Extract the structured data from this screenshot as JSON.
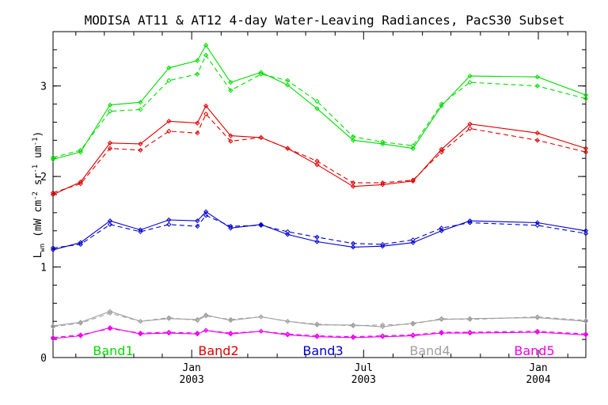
{
  "chart_data": {
    "type": "line",
    "title": "MODISA AT11 & AT12 4-day Water-Leaving Radiances, PacS30 Subset",
    "ylabel": "L_wn (mW cm^-2 sr^-1 um^-1)",
    "ylabel_main": "L",
    "ylabel_sub": "wn",
    "ylabel_open": " (mW cm",
    "ylabel_sup1": "-2",
    "ylabel_mid1": " sr",
    "ylabel_sup2": "-1",
    "ylabel_mid2": " um",
    "ylabel_sup3": "-1",
    "ylabel_close": ")",
    "xlabel": "",
    "ylim": [
      0,
      3.6
    ],
    "xlim": [
      "2002-08-08",
      "2004-02-20"
    ],
    "grid": false,
    "line_styles": {
      "AT11": "solid",
      "AT12": "dashed"
    },
    "yticks": [
      0,
      1,
      2,
      3
    ],
    "xticks": [
      {
        "date": "2003-01-01",
        "top": "Jan",
        "bottom": "2003"
      },
      {
        "date": "2003-07-01",
        "top": "Jul",
        "bottom": "2003"
      },
      {
        "date": "2004-01-01",
        "top": "Jan",
        "bottom": "2004"
      }
    ],
    "minor_xtick_dates": [
      "2002-09-01",
      "2002-10-01",
      "2002-11-01",
      "2002-12-01",
      "2003-02-01",
      "2003-03-01",
      "2003-04-01",
      "2003-05-01",
      "2003-06-01",
      "2003-08-01",
      "2003-09-01",
      "2003-10-01",
      "2003-11-01",
      "2003-12-01",
      "2004-02-01"
    ],
    "x": [
      "2002-08-08",
      "2002-09-06",
      "2002-10-07",
      "2002-11-08",
      "2002-12-08",
      "2003-01-07",
      "2003-01-16",
      "2003-02-11",
      "2003-03-15",
      "2003-04-12",
      "2003-05-13",
      "2003-06-20",
      "2003-07-21",
      "2003-08-22",
      "2003-09-21",
      "2003-10-21",
      "2003-12-31",
      "2004-02-20"
    ],
    "series": [
      {
        "name": "Band1 AT11",
        "color": "#00dd00",
        "style": "solid",
        "values": [
          2.19,
          2.27,
          2.79,
          2.82,
          3.2,
          3.28,
          3.45,
          3.04,
          3.15,
          3.01,
          2.75,
          2.4,
          2.36,
          2.31,
          2.78,
          3.11,
          3.1,
          2.9
        ]
      },
      {
        "name": "Band1 AT12",
        "color": "#00dd00",
        "style": "dashed",
        "values": [
          2.21,
          2.29,
          2.72,
          2.74,
          3.06,
          3.13,
          3.34,
          2.95,
          3.13,
          3.06,
          2.83,
          2.44,
          2.38,
          2.34,
          2.8,
          3.04,
          3.0,
          2.86
        ]
      },
      {
        "name": "Band2 AT11",
        "color": "#dd0000",
        "style": "solid",
        "values": [
          1.8,
          1.94,
          2.37,
          2.36,
          2.61,
          2.59,
          2.78,
          2.45,
          2.43,
          2.31,
          2.13,
          1.89,
          1.91,
          1.95,
          2.3,
          2.58,
          2.48,
          2.31
        ]
      },
      {
        "name": "Band2 AT12",
        "color": "#dd0000",
        "style": "dashed",
        "values": [
          1.82,
          1.92,
          2.31,
          2.29,
          2.5,
          2.48,
          2.69,
          2.39,
          2.43,
          2.31,
          2.17,
          1.93,
          1.93,
          1.96,
          2.27,
          2.53,
          2.4,
          2.27
        ]
      },
      {
        "name": "Band3 AT11",
        "color": "#0000cc",
        "style": "solid",
        "values": [
          1.19,
          1.27,
          1.51,
          1.41,
          1.52,
          1.51,
          1.61,
          1.43,
          1.47,
          1.36,
          1.28,
          1.22,
          1.23,
          1.27,
          1.4,
          1.51,
          1.49,
          1.4
        ]
      },
      {
        "name": "Band3 AT12",
        "color": "#0000cc",
        "style": "dashed",
        "values": [
          1.21,
          1.25,
          1.47,
          1.39,
          1.47,
          1.45,
          1.57,
          1.45,
          1.46,
          1.39,
          1.33,
          1.26,
          1.25,
          1.3,
          1.43,
          1.49,
          1.46,
          1.37
        ]
      },
      {
        "name": "Band4 AT11",
        "color": "#a0a0a0",
        "style": "solid",
        "values": [
          0.35,
          0.39,
          0.51,
          0.4,
          0.43,
          0.42,
          0.47,
          0.41,
          0.45,
          0.4,
          0.36,
          0.36,
          0.34,
          0.38,
          0.42,
          0.43,
          0.44,
          0.4
        ]
      },
      {
        "name": "Band4 AT12",
        "color": "#a0a0a0",
        "style": "dashed",
        "values": [
          0.34,
          0.38,
          0.49,
          0.4,
          0.44,
          0.41,
          0.46,
          0.42,
          0.45,
          0.4,
          0.37,
          0.35,
          0.36,
          0.37,
          0.43,
          0.42,
          0.45,
          0.41
        ]
      },
      {
        "name": "Band5 AT11",
        "color": "#ee00ee",
        "style": "solid",
        "values": [
          0.21,
          0.24,
          0.33,
          0.26,
          0.27,
          0.26,
          0.3,
          0.26,
          0.29,
          0.25,
          0.23,
          0.22,
          0.23,
          0.24,
          0.27,
          0.27,
          0.28,
          0.25
        ]
      },
      {
        "name": "Band5 AT12",
        "color": "#ee00ee",
        "style": "dashed",
        "values": [
          0.22,
          0.25,
          0.32,
          0.27,
          0.28,
          0.27,
          0.3,
          0.27,
          0.29,
          0.26,
          0.24,
          0.23,
          0.24,
          0.25,
          0.28,
          0.28,
          0.29,
          0.26
        ]
      }
    ],
    "legend": [
      {
        "label": "Band1",
        "color": "#00dd00"
      },
      {
        "label": "Band2",
        "color": "#dd0000"
      },
      {
        "label": "Band3",
        "color": "#0000cc"
      },
      {
        "label": "Band4",
        "color": "#a0a0a0"
      },
      {
        "label": "Band5",
        "color": "#ee00ee"
      }
    ]
  }
}
